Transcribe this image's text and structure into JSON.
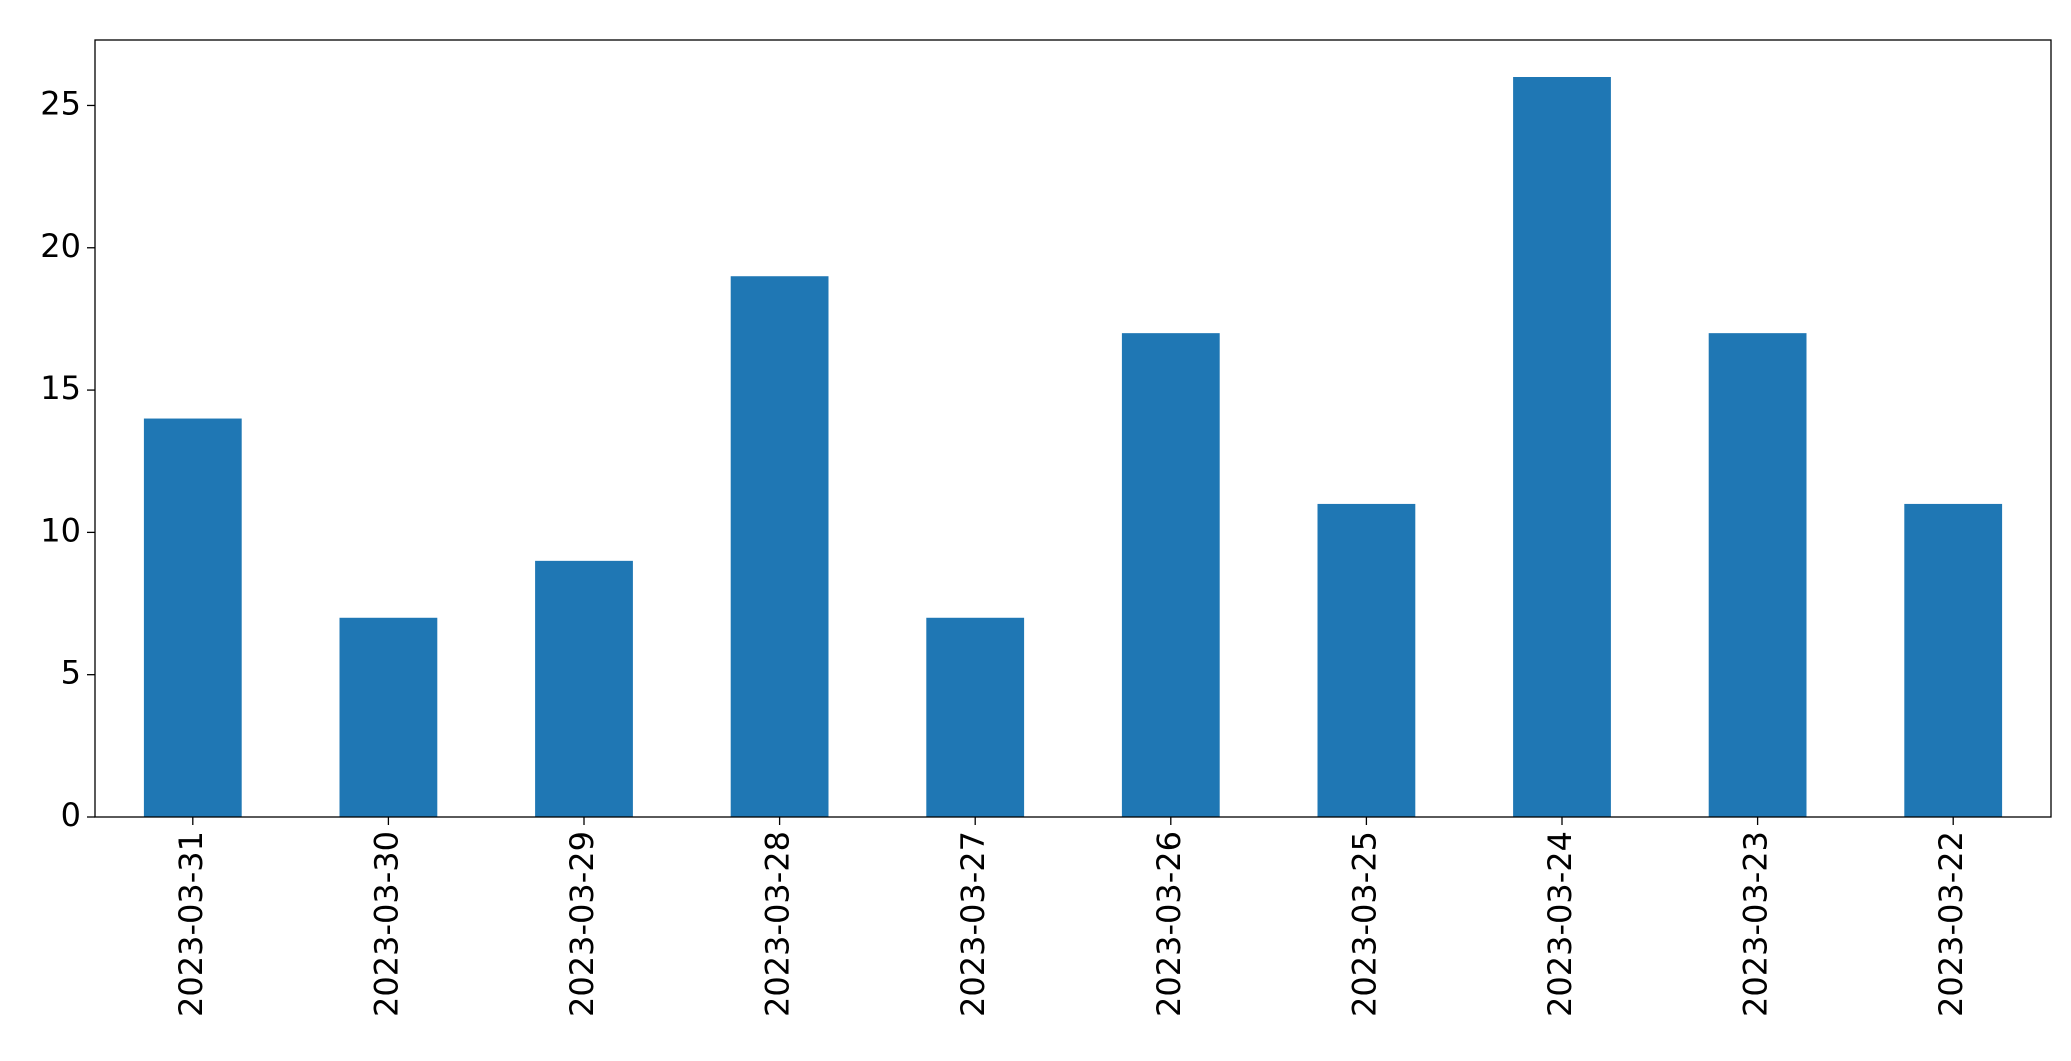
{
  "chart_data": {
    "type": "bar",
    "categories": [
      "2023-03-31",
      "2023-03-30",
      "2023-03-29",
      "2023-03-28",
      "2023-03-27",
      "2023-03-26",
      "2023-03-25",
      "2023-03-24",
      "2023-03-23",
      "2023-03-22"
    ],
    "values": [
      14,
      7,
      9,
      19,
      7,
      17,
      11,
      26,
      17,
      11
    ],
    "color": "#1f77b4",
    "ylim": [
      0,
      27.3
    ],
    "yticks": [
      0,
      5,
      10,
      15,
      20,
      25
    ],
    "grid": false
  }
}
